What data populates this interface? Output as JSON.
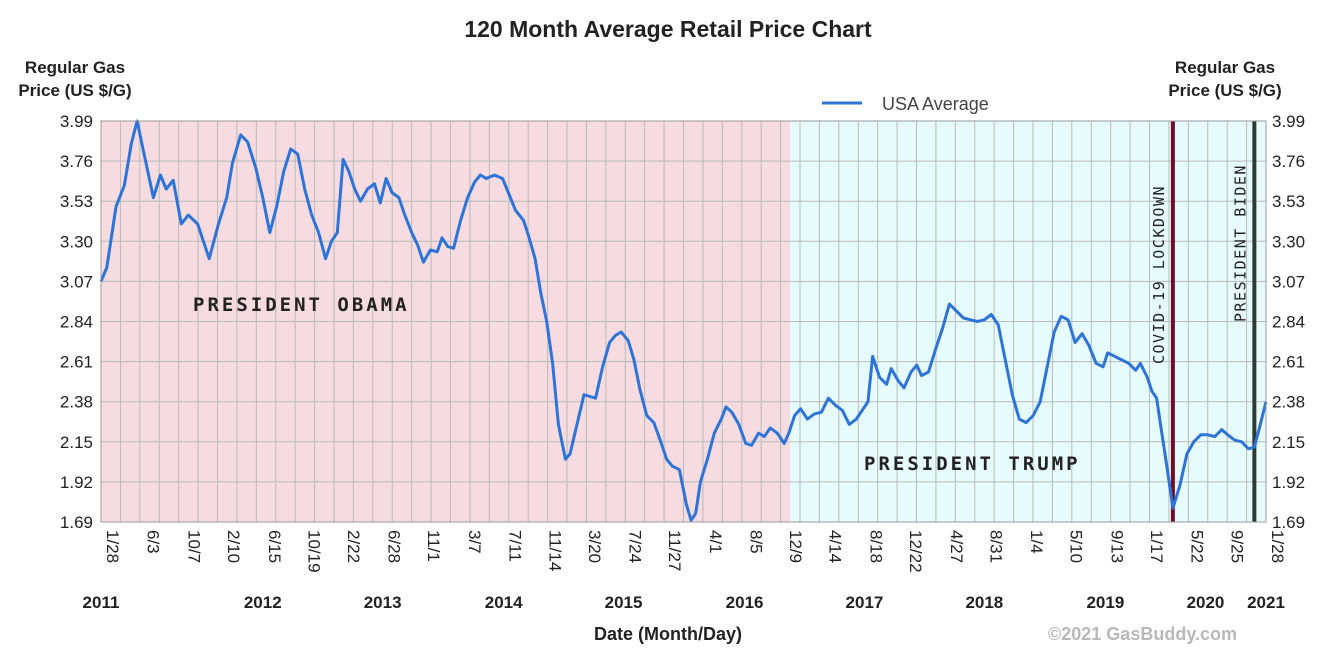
{
  "chart_data": {
    "type": "line",
    "title": "120 Month Average Retail Price Chart",
    "ylabel_left": [
      "Regular Gas",
      "Price (US $/G)"
    ],
    "ylabel_right": [
      "Regular Gas",
      "Price (US $/G)"
    ],
    "xlabel": "Date (Month/Day)",
    "copyright": "©2021 GasBuddy.com",
    "legend": {
      "label": "USA Average",
      "placement": "top-right"
    },
    "ylim": [
      1.69,
      3.99
    ],
    "y_ticks": [
      "3.99",
      "3.76",
      "3.53",
      "3.30",
      "3.07",
      "2.84",
      "2.61",
      "2.38",
      "2.15",
      "1.92",
      "1.69"
    ],
    "x_range": [
      2011.07,
      2021.08
    ],
    "x_ticks": [
      {
        "label": "1/28",
        "x": 2011.07
      },
      {
        "label": "6/3",
        "x": 2011.42
      },
      {
        "label": "10/7",
        "x": 2011.77
      },
      {
        "label": "2/10",
        "x": 2012.11
      },
      {
        "label": "6/15",
        "x": 2012.46
      },
      {
        "label": "10/19",
        "x": 2012.8
      },
      {
        "label": "2/22",
        "x": 2013.14
      },
      {
        "label": "6/28",
        "x": 2013.49
      },
      {
        "label": "11/1",
        "x": 2013.83
      },
      {
        "label": "3/7",
        "x": 2014.18
      },
      {
        "label": "7/11",
        "x": 2014.53
      },
      {
        "label": "11/14",
        "x": 2014.87
      },
      {
        "label": "3/20",
        "x": 2015.21
      },
      {
        "label": "7/24",
        "x": 2015.56
      },
      {
        "label": "11/27",
        "x": 2015.9
      },
      {
        "label": "4/1",
        "x": 2016.25
      },
      {
        "label": "8/5",
        "x": 2016.6
      },
      {
        "label": "12/9",
        "x": 2016.94
      },
      {
        "label": "4/14",
        "x": 2017.28
      },
      {
        "label": "8/18",
        "x": 2017.63
      },
      {
        "label": "12/22",
        "x": 2017.97
      },
      {
        "label": "4/27",
        "x": 2018.32
      },
      {
        "label": "8/31",
        "x": 2018.66
      },
      {
        "label": "1/4",
        "x": 2019.01
      },
      {
        "label": "5/10",
        "x": 2019.35
      },
      {
        "label": "9/13",
        "x": 2019.7
      },
      {
        "label": "1/17",
        "x": 2020.04
      },
      {
        "label": "5/22",
        "x": 2020.39
      },
      {
        "label": "9/25",
        "x": 2020.73
      },
      {
        "label": "1/28",
        "x": 2021.08
      }
    ],
    "year_labels": [
      {
        "label": "2011",
        "x": 2011.07
      },
      {
        "label": "2012",
        "x": 2012.46
      },
      {
        "label": "2013",
        "x": 2013.49
      },
      {
        "label": "2014",
        "x": 2014.53
      },
      {
        "label": "2015",
        "x": 2015.56
      },
      {
        "label": "2016",
        "x": 2016.6
      },
      {
        "label": "2017",
        "x": 2017.63
      },
      {
        "label": "2018",
        "x": 2018.66
      },
      {
        "label": "2019",
        "x": 2019.7
      },
      {
        "label": "2020",
        "x": 2020.56
      },
      {
        "label": "2021",
        "x": 2021.08
      }
    ],
    "grid": true,
    "colors": {
      "line": "#2e74d6",
      "obama_region": "#f6dbe0",
      "trump_region": "#e6fbfb",
      "covid_line": "#6e0f2a",
      "biden_line": "#2c3a30",
      "grid": "#b9b9b9"
    },
    "regions": [
      {
        "label": "PRESIDENT OBAMA",
        "x_start": 2011.07,
        "x_end": 2016.99
      },
      {
        "label": "PRESIDENT TRUMP",
        "x_start": 2016.99,
        "x_end": 2021.08
      }
    ],
    "markers": [
      {
        "label": "COVID-19 LOCKDOWN",
        "x": 2020.28
      },
      {
        "label": "PRESIDENT BIDEN",
        "x": 2020.98
      }
    ],
    "series": [
      {
        "name": "USA Average",
        "points": [
          [
            2011.07,
            3.07
          ],
          [
            2011.12,
            3.15
          ],
          [
            2011.2,
            3.5
          ],
          [
            2011.27,
            3.62
          ],
          [
            2011.33,
            3.86
          ],
          [
            2011.38,
            3.99
          ],
          [
            2011.44,
            3.8
          ],
          [
            2011.52,
            3.55
          ],
          [
            2011.58,
            3.68
          ],
          [
            2011.63,
            3.6
          ],
          [
            2011.69,
            3.65
          ],
          [
            2011.76,
            3.4
          ],
          [
            2011.82,
            3.45
          ],
          [
            2011.9,
            3.4
          ],
          [
            2011.95,
            3.3
          ],
          [
            2012.0,
            3.2
          ],
          [
            2012.08,
            3.4
          ],
          [
            2012.15,
            3.55
          ],
          [
            2012.2,
            3.75
          ],
          [
            2012.27,
            3.91
          ],
          [
            2012.33,
            3.87
          ],
          [
            2012.4,
            3.72
          ],
          [
            2012.46,
            3.55
          ],
          [
            2012.52,
            3.35
          ],
          [
            2012.58,
            3.5
          ],
          [
            2012.64,
            3.7
          ],
          [
            2012.7,
            3.83
          ],
          [
            2012.76,
            3.8
          ],
          [
            2012.82,
            3.6
          ],
          [
            2012.88,
            3.45
          ],
          [
            2012.94,
            3.35
          ],
          [
            2013.0,
            3.2
          ],
          [
            2013.05,
            3.3
          ],
          [
            2013.1,
            3.35
          ],
          [
            2013.15,
            3.77
          ],
          [
            2013.2,
            3.7
          ],
          [
            2013.25,
            3.6
          ],
          [
            2013.3,
            3.53
          ],
          [
            2013.36,
            3.6
          ],
          [
            2013.42,
            3.63
          ],
          [
            2013.47,
            3.52
          ],
          [
            2013.52,
            3.66
          ],
          [
            2013.57,
            3.58
          ],
          [
            2013.63,
            3.55
          ],
          [
            2013.68,
            3.45
          ],
          [
            2013.74,
            3.35
          ],
          [
            2013.79,
            3.28
          ],
          [
            2013.84,
            3.18
          ],
          [
            2013.9,
            3.25
          ],
          [
            2013.96,
            3.24
          ],
          [
            2014.0,
            3.32
          ],
          [
            2014.05,
            3.27
          ],
          [
            2014.1,
            3.26
          ],
          [
            2014.16,
            3.42
          ],
          [
            2014.22,
            3.55
          ],
          [
            2014.28,
            3.64
          ],
          [
            2014.33,
            3.68
          ],
          [
            2014.38,
            3.66
          ],
          [
            2014.45,
            3.68
          ],
          [
            2014.52,
            3.66
          ],
          [
            2014.57,
            3.58
          ],
          [
            2014.63,
            3.48
          ],
          [
            2014.7,
            3.42
          ],
          [
            2014.74,
            3.34
          ],
          [
            2014.8,
            3.2
          ],
          [
            2014.85,
            3.0
          ],
          [
            2014.9,
            2.84
          ],
          [
            2014.95,
            2.6
          ],
          [
            2015.0,
            2.25
          ],
          [
            2015.06,
            2.05
          ],
          [
            2015.1,
            2.08
          ],
          [
            2015.16,
            2.25
          ],
          [
            2015.22,
            2.42
          ],
          [
            2015.27,
            2.41
          ],
          [
            2015.32,
            2.4
          ],
          [
            2015.38,
            2.58
          ],
          [
            2015.44,
            2.72
          ],
          [
            2015.49,
            2.76
          ],
          [
            2015.54,
            2.78
          ],
          [
            2015.6,
            2.73
          ],
          [
            2015.65,
            2.62
          ],
          [
            2015.7,
            2.45
          ],
          [
            2015.76,
            2.3
          ],
          [
            2015.82,
            2.26
          ],
          [
            2015.88,
            2.15
          ],
          [
            2015.93,
            2.05
          ],
          [
            2015.98,
            2.01
          ],
          [
            2016.04,
            1.99
          ],
          [
            2016.1,
            1.79
          ],
          [
            2016.14,
            1.7
          ],
          [
            2016.18,
            1.74
          ],
          [
            2016.22,
            1.92
          ],
          [
            2016.28,
            2.05
          ],
          [
            2016.34,
            2.2
          ],
          [
            2016.4,
            2.28
          ],
          [
            2016.44,
            2.35
          ],
          [
            2016.49,
            2.32
          ],
          [
            2016.55,
            2.25
          ],
          [
            2016.61,
            2.14
          ],
          [
            2016.66,
            2.13
          ],
          [
            2016.72,
            2.2
          ],
          [
            2016.77,
            2.18
          ],
          [
            2016.82,
            2.23
          ],
          [
            2016.88,
            2.2
          ],
          [
            2016.94,
            2.14
          ],
          [
            2016.98,
            2.2
          ],
          [
            2017.03,
            2.3
          ],
          [
            2017.08,
            2.34
          ],
          [
            2017.14,
            2.28
          ],
          [
            2017.2,
            2.31
          ],
          [
            2017.26,
            2.32
          ],
          [
            2017.32,
            2.4
          ],
          [
            2017.38,
            2.36
          ],
          [
            2017.44,
            2.33
          ],
          [
            2017.5,
            2.25
          ],
          [
            2017.56,
            2.28
          ],
          [
            2017.62,
            2.34
          ],
          [
            2017.66,
            2.38
          ],
          [
            2017.7,
            2.64
          ],
          [
            2017.76,
            2.52
          ],
          [
            2017.82,
            2.48
          ],
          [
            2017.86,
            2.57
          ],
          [
            2017.92,
            2.5
          ],
          [
            2017.97,
            2.46
          ],
          [
            2018.03,
            2.55
          ],
          [
            2018.08,
            2.59
          ],
          [
            2018.12,
            2.53
          ],
          [
            2018.18,
            2.55
          ],
          [
            2018.24,
            2.68
          ],
          [
            2018.3,
            2.8
          ],
          [
            2018.36,
            2.94
          ],
          [
            2018.42,
            2.9
          ],
          [
            2018.48,
            2.86
          ],
          [
            2018.54,
            2.85
          ],
          [
            2018.6,
            2.84
          ],
          [
            2018.66,
            2.85
          ],
          [
            2018.72,
            2.88
          ],
          [
            2018.78,
            2.82
          ],
          [
            2018.84,
            2.62
          ],
          [
            2018.9,
            2.42
          ],
          [
            2018.96,
            2.28
          ],
          [
            2019.02,
            2.26
          ],
          [
            2019.08,
            2.3
          ],
          [
            2019.14,
            2.38
          ],
          [
            2019.2,
            2.58
          ],
          [
            2019.26,
            2.78
          ],
          [
            2019.32,
            2.87
          ],
          [
            2019.38,
            2.85
          ],
          [
            2019.44,
            2.72
          ],
          [
            2019.5,
            2.77
          ],
          [
            2019.56,
            2.7
          ],
          [
            2019.62,
            2.6
          ],
          [
            2019.68,
            2.58
          ],
          [
            2019.72,
            2.66
          ],
          [
            2019.78,
            2.64
          ],
          [
            2019.84,
            2.62
          ],
          [
            2019.9,
            2.6
          ],
          [
            2019.96,
            2.56
          ],
          [
            2020.0,
            2.6
          ],
          [
            2020.06,
            2.52
          ],
          [
            2020.1,
            2.44
          ],
          [
            2020.14,
            2.4
          ],
          [
            2020.18,
            2.22
          ],
          [
            2020.23,
            2.0
          ],
          [
            2020.28,
            1.77
          ],
          [
            2020.34,
            1.9
          ],
          [
            2020.4,
            2.08
          ],
          [
            2020.46,
            2.15
          ],
          [
            2020.52,
            2.19
          ],
          [
            2020.58,
            2.19
          ],
          [
            2020.64,
            2.18
          ],
          [
            2020.7,
            2.22
          ],
          [
            2020.75,
            2.19
          ],
          [
            2020.81,
            2.16
          ],
          [
            2020.87,
            2.15
          ],
          [
            2020.93,
            2.11
          ],
          [
            2020.98,
            2.12
          ],
          [
            2021.02,
            2.22
          ],
          [
            2021.05,
            2.3
          ],
          [
            2021.08,
            2.38
          ]
        ]
      }
    ]
  }
}
